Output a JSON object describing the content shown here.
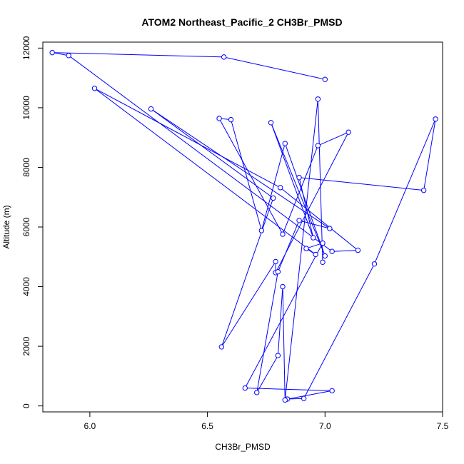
{
  "chart_data": {
    "type": "line",
    "title": "ATOM2 Northeast_Pacific_2 CH3Br_PMSD",
    "xlabel": "CH3Br_PMSD",
    "ylabel": "Altitude (m)",
    "xlim": [
      5.8,
      7.5
    ],
    "ylim": [
      -200,
      12200
    ],
    "xticks": [
      6.0,
      6.5,
      7.0,
      7.5
    ],
    "xtick_labels": [
      "6.0",
      "6.5",
      "7.0",
      "7.5"
    ],
    "yticks": [
      0,
      2000,
      4000,
      6000,
      8000,
      10000,
      12000
    ],
    "ytick_labels": [
      "0",
      "2000",
      "4000",
      "6000",
      "8000",
      "10000",
      "12000"
    ],
    "series": [
      {
        "color": "#0000ff",
        "marker": "open-circle",
        "x": [
          7.0,
          6.57,
          5.84,
          5.91,
          7.03,
          7.14,
          6.81,
          6.02,
          6.96,
          6.92,
          6.99,
          6.66,
          7.03,
          6.84,
          6.91,
          7.21,
          7.47,
          7.42,
          6.89,
          6.95,
          6.77,
          7.0,
          6.83,
          6.73,
          6.6,
          6.55,
          6.82,
          6.97,
          7.1,
          6.79,
          6.79,
          6.56,
          6.78,
          6.26,
          7.02,
          6.89,
          6.8,
          6.71,
          6.8,
          6.82,
          6.83,
          6.97,
          6.99
        ],
        "y": [
          10950,
          11700,
          11850,
          11750,
          5180,
          5220,
          7320,
          10650,
          5080,
          5280,
          5460,
          600,
          510,
          230,
          250,
          4760,
          9620,
          7230,
          7660,
          5640,
          9500,
          5030,
          8800,
          5880,
          9600,
          9640,
          5760,
          8730,
          9180,
          4470,
          4840,
          1980,
          6970,
          9960,
          5950,
          6220,
          4500,
          450,
          1690,
          4000,
          200,
          10290,
          4820
        ]
      }
    ]
  }
}
